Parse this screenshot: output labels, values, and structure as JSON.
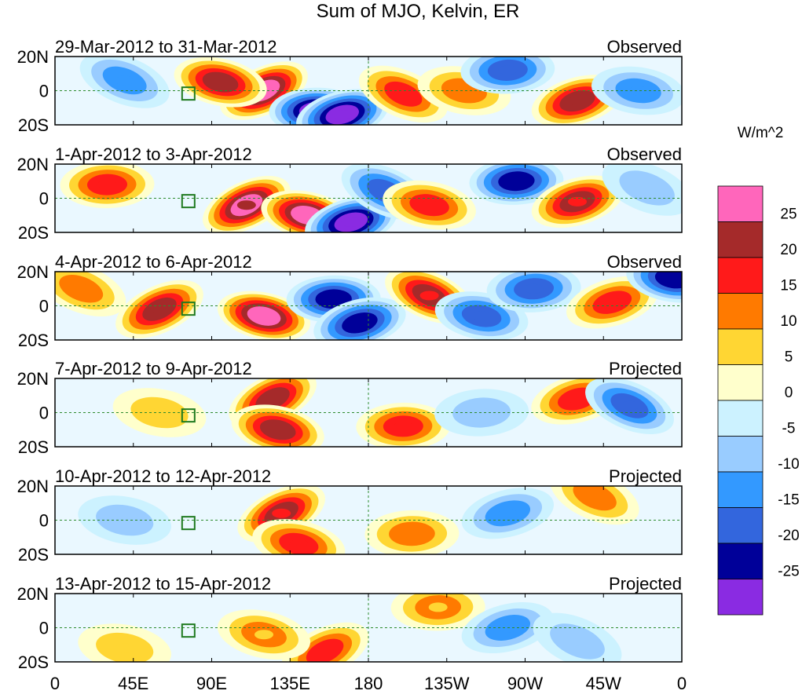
{
  "chart_data": {
    "type": "heatmap",
    "title": "Sum of MJO, Kelvin, ER",
    "units": "W/m^2",
    "colorbar": {
      "tick_labels": [
        "25",
        "20",
        "15",
        "10",
        "5",
        "0",
        "-5",
        "-10",
        "-15",
        "-20",
        "-25"
      ],
      "colors": [
        "#ff66bb",
        "#a52a2a",
        "#ff1a1a",
        "#ff7a00",
        "#ffd633",
        "#ffffcc",
        "#ccf2ff",
        "#99ccff",
        "#3399ff",
        "#3366dd",
        "#000099",
        "#8a2be2"
      ]
    },
    "x_axis": {
      "tick_labels": [
        "0",
        "45E",
        "90E",
        "135E",
        "180",
        "135W",
        "90W",
        "45W",
        "0"
      ],
      "range": [
        0,
        360
      ]
    },
    "y_axis": {
      "tick_labels": [
        "20N",
        "0",
        "20S"
      ],
      "range": [
        -20,
        20
      ]
    },
    "panels": [
      {
        "date_range": "29-Mar-2012 to 31-Mar-2012",
        "label": "Observed",
        "features": [
          {
            "lon": 120,
            "lat": 0,
            "value": 28
          },
          {
            "lon": 95,
            "lat": 5,
            "value": 22
          },
          {
            "lon": 150,
            "lat": -12,
            "value": -27
          },
          {
            "lon": 165,
            "lat": -14,
            "value": -25
          },
          {
            "lon": 200,
            "lat": -2,
            "value": 18
          },
          {
            "lon": 235,
            "lat": 0,
            "value": 12
          },
          {
            "lon": 260,
            "lat": 12,
            "value": -16
          },
          {
            "lon": 300,
            "lat": -6,
            "value": 22
          },
          {
            "lon": 40,
            "lat": 6,
            "value": -12
          },
          {
            "lon": 335,
            "lat": 0,
            "value": -10
          }
        ]
      },
      {
        "date_range": "1-Apr-2012 to 3-Apr-2012",
        "label": "Observed",
        "features": [
          {
            "lon": 110,
            "lat": -4,
            "value": 25
          },
          {
            "lon": 145,
            "lat": -10,
            "value": 28
          },
          {
            "lon": 30,
            "lat": 8,
            "value": 18
          },
          {
            "lon": 170,
            "lat": -14,
            "value": -26
          },
          {
            "lon": 190,
            "lat": 4,
            "value": -18
          },
          {
            "lon": 215,
            "lat": -4,
            "value": 16
          },
          {
            "lon": 265,
            "lat": 10,
            "value": -20
          },
          {
            "lon": 300,
            "lat": -2,
            "value": 20
          },
          {
            "lon": 340,
            "lat": 6,
            "value": -8
          }
        ]
      },
      {
        "date_range": "4-Apr-2012 to 6-Apr-2012",
        "label": "Observed",
        "features": [
          {
            "lon": 60,
            "lat": -2,
            "value": 22
          },
          {
            "lon": 120,
            "lat": -6,
            "value": 26
          },
          {
            "lon": 160,
            "lat": 4,
            "value": -24
          },
          {
            "lon": 175,
            "lat": -10,
            "value": -20
          },
          {
            "lon": 215,
            "lat": 6,
            "value": 20
          },
          {
            "lon": 245,
            "lat": -6,
            "value": -18
          },
          {
            "lon": 275,
            "lat": 10,
            "value": -16
          },
          {
            "lon": 320,
            "lat": 2,
            "value": 18
          },
          {
            "lon": 15,
            "lat": 10,
            "value": 14
          },
          {
            "lon": 355,
            "lat": 16,
            "value": -22
          }
        ]
      },
      {
        "date_range": "7-Apr-2012 to 9-Apr-2012",
        "label": "Projected",
        "features": [
          {
            "lon": 125,
            "lat": 8,
            "value": 24
          },
          {
            "lon": 128,
            "lat": -10,
            "value": 22
          },
          {
            "lon": 200,
            "lat": -8,
            "value": 16
          },
          {
            "lon": 300,
            "lat": 8,
            "value": 18
          },
          {
            "lon": 330,
            "lat": 4,
            "value": -18
          },
          {
            "lon": 60,
            "lat": 0,
            "value": 6
          },
          {
            "lon": 245,
            "lat": 0,
            "value": -8
          }
        ]
      },
      {
        "date_range": "10-Apr-2012 to 12-Apr-2012",
        "label": "Projected",
        "features": [
          {
            "lon": 130,
            "lat": 4,
            "value": 20
          },
          {
            "lon": 140,
            "lat": -14,
            "value": 18
          },
          {
            "lon": 205,
            "lat": -8,
            "value": 14
          },
          {
            "lon": 260,
            "lat": 4,
            "value": -12
          },
          {
            "lon": 310,
            "lat": 14,
            "value": 12
          },
          {
            "lon": 40,
            "lat": 0,
            "value": -6
          }
        ]
      },
      {
        "date_range": "13-Apr-2012 to 15-Apr-2012",
        "label": "Projected",
        "features": [
          {
            "lon": 155,
            "lat": -14,
            "value": 18
          },
          {
            "lon": 120,
            "lat": -4,
            "value": 10
          },
          {
            "lon": 220,
            "lat": 12,
            "value": 10
          },
          {
            "lon": 260,
            "lat": 0,
            "value": -10
          },
          {
            "lon": 300,
            "lat": -8,
            "value": -6
          },
          {
            "lon": 40,
            "lat": -12,
            "value": 8
          }
        ]
      }
    ]
  }
}
